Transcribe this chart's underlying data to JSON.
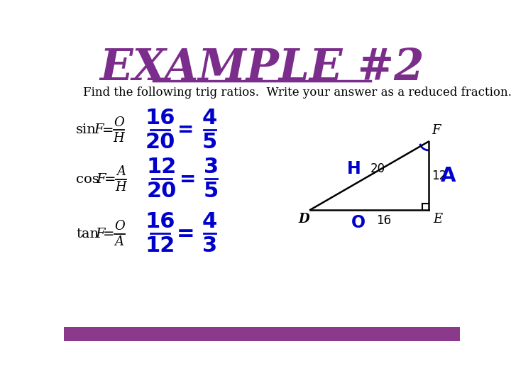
{
  "title": "EXAMPLE #2",
  "title_color": "#7B2D8B",
  "subtitle": "Find the following trig ratios.  Write your answer as a reduced fraction.",
  "subtitle_color": "#000000",
  "blue": "#0000CC",
  "black": "#000000",
  "background_color": "#FFFFFF",
  "footer_color": "#8B3A8B",
  "triangle_D": "D",
  "triangle_O": "O",
  "triangle_E": "E",
  "triangle_F": "F",
  "triangle_H": "H",
  "triangle_A": "A",
  "side_20": "20",
  "side_16": "16",
  "side_12": "12"
}
